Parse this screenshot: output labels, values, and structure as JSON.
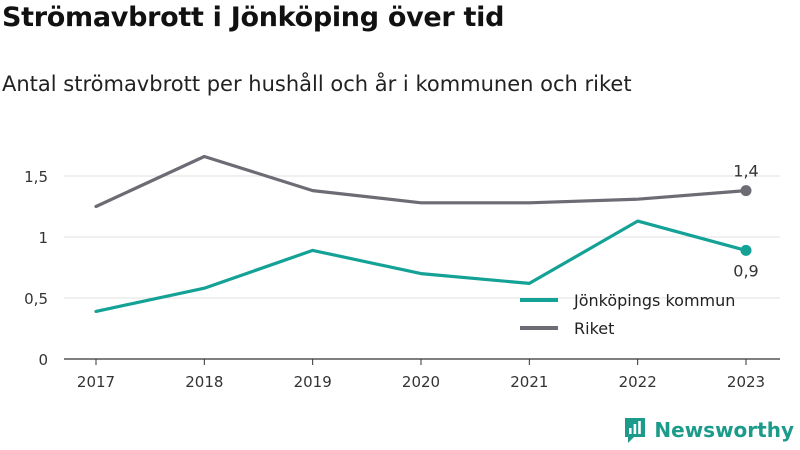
{
  "title": "Strömavbrott i Jönköping över tid",
  "subtitle": "Antal strömavbrott per hushåll och år i kommunen och riket",
  "brand": "Newsworthy",
  "colors": {
    "kommun": "#14a196",
    "riket": "#6d6b73",
    "axis": "#333333",
    "grid": "#e2e2e2"
  },
  "chart_data": {
    "type": "line",
    "categories": [
      "2017",
      "2018",
      "2019",
      "2020",
      "2021",
      "2022",
      "2023"
    ],
    "ylim": [
      0,
      1.5
    ],
    "yticks": [
      "0",
      "0,5",
      "1",
      "1,5"
    ],
    "ytick_values": [
      0,
      0.5,
      1,
      1.5
    ],
    "grid": true,
    "legend_position": "bottom-right",
    "series": [
      {
        "name": "Jönköpings kommun",
        "values": [
          0.39,
          0.58,
          0.89,
          0.7,
          0.62,
          1.13,
          0.89
        ],
        "end_label": "0,9"
      },
      {
        "name": "Riket",
        "values": [
          1.25,
          1.66,
          1.38,
          1.28,
          1.28,
          1.31,
          1.38
        ],
        "end_label": "1,4"
      }
    ]
  }
}
